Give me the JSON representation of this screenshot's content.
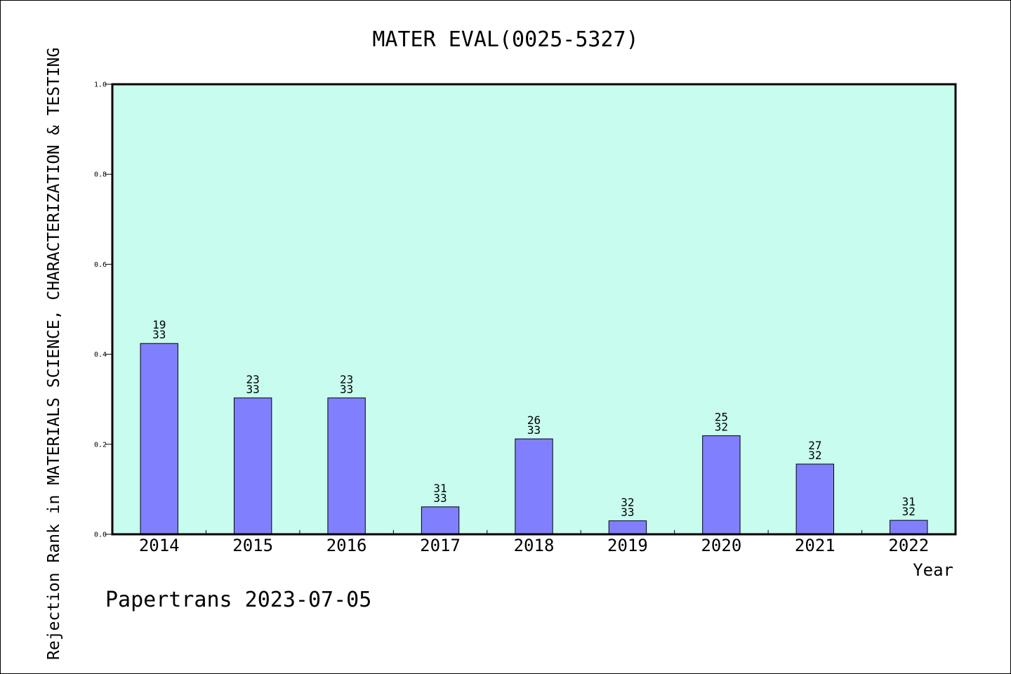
{
  "chart_data": {
    "type": "bar",
    "title": "MATER EVAL(0025-5327)",
    "xlabel": "Year",
    "ylabel": "Rejection Rank in MATERIALS SCIENCE, CHARACTERIZATION & TESTING",
    "ylim": [
      0,
      1.0
    ],
    "yticks": [
      "0.0",
      "0.2",
      "0.4",
      "0.6",
      "0.8",
      "1.0"
    ],
    "grid": false,
    "categories": [
      "2014",
      "2015",
      "2016",
      "2017",
      "2018",
      "2019",
      "2020",
      "2021",
      "2022"
    ],
    "values": [
      0.424,
      0.303,
      0.303,
      0.061,
      0.212,
      0.03,
      0.219,
      0.156,
      0.031
    ],
    "labels": [
      [
        "19",
        "33"
      ],
      [
        "23",
        "33"
      ],
      [
        "23",
        "33"
      ],
      [
        "31",
        "33"
      ],
      [
        "26",
        "33"
      ],
      [
        "32",
        "33"
      ],
      [
        "25",
        "32"
      ],
      [
        "27",
        "32"
      ],
      [
        "31",
        "32"
      ]
    ],
    "colors": {
      "plot_bg": "#c8fcee",
      "bar": "#8080ff",
      "axis": "#000000"
    }
  },
  "footer": "Papertrans 2023-07-05"
}
